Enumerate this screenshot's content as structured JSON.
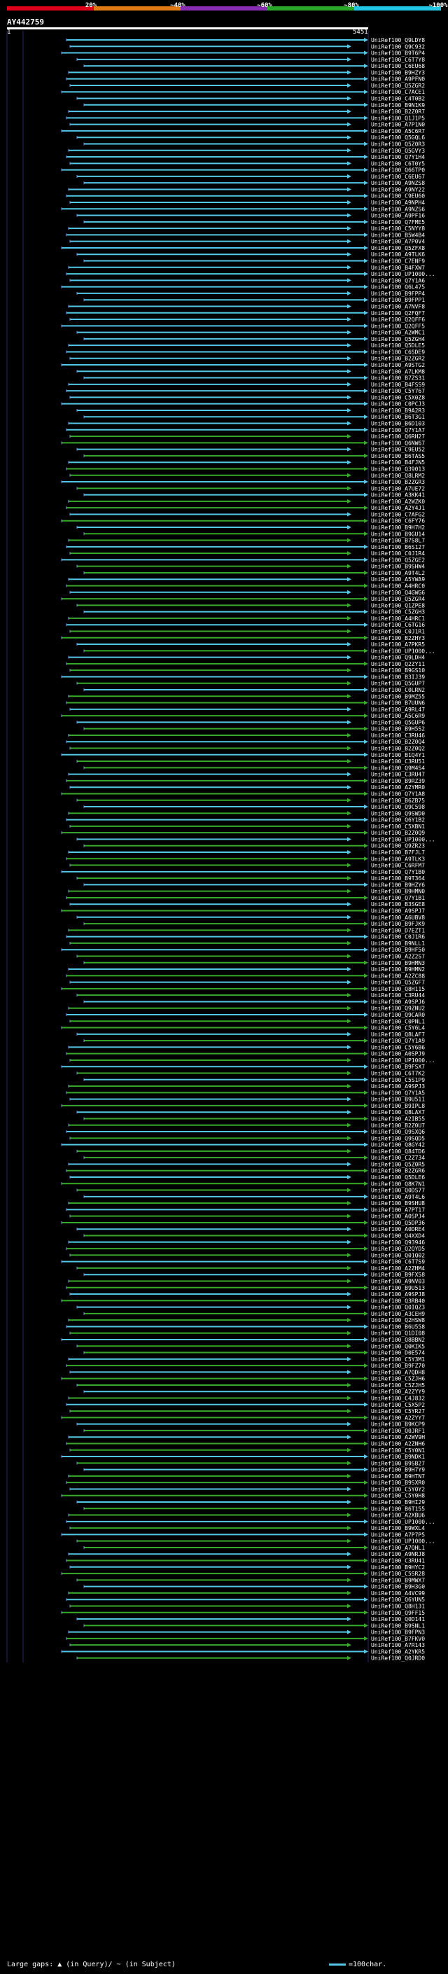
{
  "header": {
    "title": "AY442759",
    "scale_start": "1",
    "scale_end": "5451",
    "legend": [
      {
        "label": "20%",
        "color": "#e0001b"
      },
      {
        "label": "~40%",
        "color": "#e07a12"
      },
      {
        "label": "~60%",
        "color": "#8a2db5"
      },
      {
        "label": "~80%",
        "color": "#2aa82a"
      },
      {
        "label": "~100%",
        "color": "#22c7e6"
      }
    ]
  },
  "colors": {
    "blue": "#53c7e6",
    "green": "#37a92b",
    "tick": "#8a8ae6",
    "grid": "#2a2a66"
  },
  "footer": {
    "gaps_label": "Large gaps: ▲ (in Query)/ ~ (in Subject)",
    "scale_label": "=100char."
  },
  "hits": [
    "UniRef100_Q9LDY8",
    "UniRef100_Q9C932",
    "UniRef100_B9T6P4",
    "UniRef100_C6T7Y8",
    "UniRef100_C6EU68",
    "UniRef100_B9HZY3",
    "UniRef100_A9PFN0",
    "UniRef100_Q5ZGR2",
    "UniRef100_C7ACE1",
    "UniRef100_C4T0B2",
    "UniRef100_B9N1K9",
    "UniRef100_B2Z0R7",
    "UniRef100_Q1J1P5",
    "UniRef100_A7P1N0",
    "UniRef100_A5C6R7",
    "UniRef100_Q5GQL6",
    "UniRef100_Q5Z0R3",
    "UniRef100_Q5GVY3",
    "UniRef100_Q7Y1H4",
    "UniRef100_C6T0Y5",
    "UniRef100_Q66TP0",
    "UniRef100_C6EU67",
    "UniRef100_A9NZS8",
    "UniRef100_A9NY22",
    "UniRef100_C9EU60",
    "UniRef100_A9NPH4",
    "UniRef100_A9NZS6",
    "UniRef100_A9PF16",
    "UniRef100_Q7FME5",
    "UniRef100_C5NYY8",
    "UniRef100_B5W4B4",
    "UniRef100_A7P0V4",
    "UniRef100_Q5ZFX8",
    "UniRef100_A9TLK6",
    "UniRef100_C7ENF9",
    "UniRef100_B4FXW7",
    "UniRef100_UP1000...",
    "UniRef100_Q7Y1A6",
    "UniRef100_Q6L475",
    "UniRef100_B9FPP4",
    "UniRef100_B9FPP1",
    "UniRef100_A7NVF8",
    "UniRef100_Q2FQF7",
    "UniRef100_Q2QFF6",
    "UniRef100_Q2QFF5",
    "UniRef100_A2WMC1",
    "UniRef100_Q5ZGH4",
    "UniRef100_Q5DLE5",
    "UniRef100_C6SDE9",
    "UniRef100_B2ZGR2",
    "UniRef100_A9STG2",
    "UniRef100_A7LKM8",
    "UniRef100_B7ZS31",
    "UniRef100_B4FSS9",
    "UniRef100_C5Y767",
    "UniRef100_C5X0Z8",
    "UniRef100_C0PCJ3",
    "UniRef100_B9A2R3",
    "UniRef100_B6T3G1",
    "UniRef100_B6D103",
    "UniRef100_Q7Y1A7",
    "UniRef100_Q6RH27",
    "UniRef100_Q6NW67",
    "UniRef100_C9EU52",
    "UniRef100_B6TAS5",
    "UniRef100_B4FJN5",
    "UniRef100_Q39013",
    "UniRef100_Q8LRM2",
    "UniRef100_B2ZGR3",
    "UniRef100_A7UE72",
    "UniRef100_A3KK41",
    "UniRef100_A2WZK0",
    "UniRef100_A2Y4J1",
    "UniRef100_C7AFG2",
    "UniRef100_C6FY76",
    "UniRef100_B9H7H2",
    "UniRef100_B9GU14",
    "UniRef100_B7S8L7",
    "UniRef100_B6S127",
    "UniRef100_C0J1R4",
    "UniRef100_Q5ZGE2",
    "UniRef100_B9SHW4",
    "UniRef100_A9T4L2",
    "UniRef100_A5YWA9",
    "UniRef100_A4HRC0",
    "UniRef100_Q4GWG6",
    "UniRef100_Q5ZGR4",
    "UniRef100_Q1ZPE8",
    "UniRef100_C5ZGH3",
    "UniRef100_A4HRC1",
    "UniRef100_C6TG16",
    "UniRef100_C0J1R1",
    "UniRef100_B2ZHY3",
    "UniRef100_A7PKR5",
    "UniRef100_UP1000...",
    "UniRef100_Q9LDH4",
    "UniRef100_Q2ZY11",
    "UniRef100_B9GS10",
    "UniRef100_B3IJ39",
    "UniRef100_Q5GUP7",
    "UniRef100_C0LRN2",
    "UniRef100_B9MZ55",
    "UniRef100_B7UUN6",
    "UniRef100_A9RL47",
    "UniRef100_A5C6R9",
    "UniRef100_Q5GUP6",
    "UniRef100_B9H5S2",
    "UniRef100_C3RU46",
    "UniRef100_B2Z0Q4",
    "UniRef100_B2Z0Q2",
    "UniRef100_B1Q4Y1",
    "UniRef100_C3RU51",
    "UniRef100_Q9M4S4",
    "UniRef100_C3RU47",
    "UniRef100_B9RZ39",
    "UniRef100_A2YMR0",
    "UniRef100_Q7Y1A8",
    "UniRef100_B6ZB75",
    "UniRef100_Q9C598",
    "UniRef100_Q9SWD0",
    "UniRef100_Q6Y1B2",
    "UniRef100_C5XBN1",
    "UniRef100_B2Z0Q9",
    "UniRef100_UP1000...",
    "UniRef100_Q9ZR23",
    "UniRef100_B7FJL7",
    "UniRef100_A9TLK3",
    "UniRef100_C6RFM7",
    "UniRef100_Q7Y1B0",
    "UniRef100_B9T364",
    "UniRef100_B9HZY6",
    "UniRef100_B9HMN0",
    "UniRef100_Q7Y1B1",
    "UniRef100_B3SGE8",
    "UniRef100_A9SPJ7",
    "UniRef100_A6UBV8",
    "UniRef100_B9FJK9",
    "UniRef100_D7EZT1",
    "UniRef100_C0J1R6",
    "UniRef100_B9NLL1",
    "UniRef100_B9HF50",
    "UniRef100_A2Z2S7",
    "UniRef100_B9HMN3",
    "UniRef100_B9HMN2",
    "UniRef100_A2ZC88",
    "UniRef100_Q5ZGF7",
    "UniRef100_Q8H115",
    "UniRef100_C3RU44",
    "UniRef100_A9SPJ6",
    "UniRef100_Q9ZNU2",
    "UniRef100_Q9CAR0",
    "UniRef100_C0PNL1",
    "UniRef100_C5Y6L4",
    "UniRef100_Q8LAF7",
    "UniRef100_Q7Y1A9",
    "UniRef100_C5Y6B6",
    "UniRef100_A0SPJ9",
    "UniRef100_UP1000...",
    "UniRef100_B9FSX7",
    "UniRef100_C6T7K2",
    "UniRef100_C5S1P9",
    "UniRef100_A9SPJ3",
    "UniRef100_Q7Y1A5",
    "UniRef100_B9U511",
    "UniRef100_B9IPL8",
    "UniRef100_Q8LAX7",
    "UniRef100_A2IB55",
    "UniRef100_B2Z0U7",
    "UniRef100_Q9SXQ6",
    "UniRef100_Q9SQD5",
    "UniRef100_Q8GY42",
    "UniRef100_Q84TD6",
    "UniRef100_C2Z734",
    "UniRef100_Q5Z0R5",
    "UniRef100_B2ZGR6",
    "UniRef100_Q5DLE6",
    "UniRef100_Q8K7N1",
    "UniRef100_Q0DS77",
    "UniRef100_A9T4L6",
    "UniRef100_B9SHU8",
    "UniRef100_A7PT17",
    "UniRef100_A0SPJ4",
    "UniRef100_Q5DP36",
    "UniRef100_A0DRE4",
    "UniRef100_Q4XXD4",
    "UniRef100_Q93946",
    "UniRef100_Q2QYD5",
    "UniRef100_Q01Q02",
    "UniRef100_C6T7S9",
    "UniRef100_A2ZHM4",
    "UniRef100_B9FX58",
    "UniRef100_A9NV03",
    "UniRef100_B9U513",
    "UniRef100_A9SPJ8",
    "UniRef100_Q3RB40",
    "UniRef100_Q0IQZ3",
    "UniRef100_A3CEH9",
    "UniRef100_Q2HSW8",
    "UniRef100_B6U558",
    "UniRef100_Q1DI08",
    "UniRef100_Q8BBN2",
    "UniRef100_Q0KIK5",
    "UniRef100_D0E574",
    "UniRef100_C5Y3M1",
    "UniRef100_B9FZ70",
    "UniRef100_A7QDH8",
    "UniRef100_C5ZJH6",
    "UniRef100_C5ZJH5",
    "UniRef100_A2ZYY9",
    "UniRef100_C4J832",
    "UniRef100_C5X5P2",
    "UniRef100_C5YR27",
    "UniRef100_A2ZYY7",
    "UniRef100_B9KCP9",
    "UniRef100_Q0JRF1",
    "UniRef100_A2WV9H",
    "UniRef100_A2ZNH6",
    "UniRef100_C5Y0N1",
    "UniRef100_B9NDK1",
    "UniRef100_B9SB27",
    "UniRef100_B9H7Y9",
    "UniRef100_B9HTN7",
    "UniRef100_B9SXR0",
    "UniRef100_C5Y0Y2",
    "UniRef100_C5Y0H8",
    "UniRef100_B9HI29",
    "UniRef100_B6T155",
    "UniRef100_A2XBU6",
    "UniRef100_UP1000...",
    "UniRef100_B9WXL4",
    "UniRef100_A7P7P5",
    "UniRef100_UP1000...",
    "UniRef100_A7QHL1",
    "UniRef100_A9NRJ8",
    "UniRef100_C3RU41",
    "UniRef100_B9HYC2",
    "UniRef100_C5SR28",
    "UniRef100_B9MWX7",
    "UniRef100_B9H3G0",
    "UniRef100_A4VC99",
    "UniRef100_Q6YUN5",
    "UniRef100_Q8H131",
    "UniRef100_Q9FF15",
    "UniRef100_Q0D141",
    "UniRef100_B9SNL1",
    "UniRef100_B9FPN3",
    "UniRef100_B7FKV0",
    "UniRef100_A7R143",
    "UniRef100_A2YKR5",
    "UniRef100_Q0JRD0"
  ]
}
